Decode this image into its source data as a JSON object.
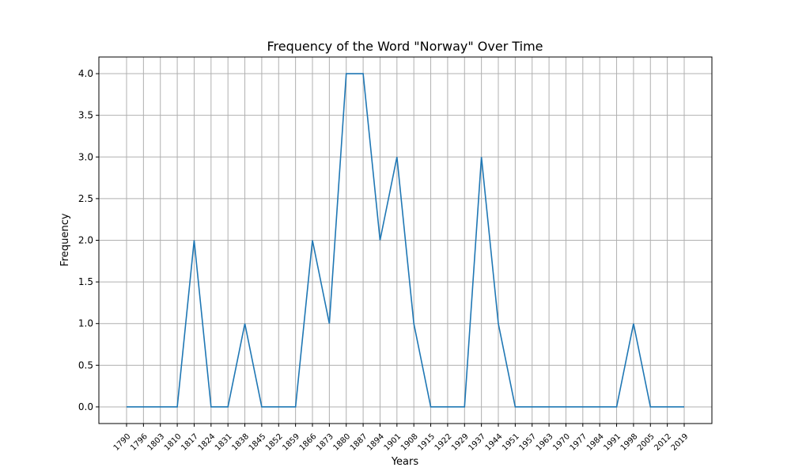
{
  "chart_data": {
    "type": "line",
    "title": "Frequency of the Word \"Norway\" Over Time",
    "xlabel": "Years",
    "ylabel": "Frequency",
    "ylim": [
      -0.2,
      4.2
    ],
    "yticks": [
      "0.0",
      "0.5",
      "1.0",
      "1.5",
      "2.0",
      "2.5",
      "3.0",
      "3.5",
      "4.0"
    ],
    "grid": true,
    "categories": [
      "1790",
      "1796",
      "1803",
      "1810",
      "1817",
      "1824",
      "1831",
      "1838",
      "1845",
      "1852",
      "1859",
      "1866",
      "1873",
      "1880",
      "1887",
      "1894",
      "1901",
      "1908",
      "1915",
      "1922",
      "1929",
      "1937",
      "1944",
      "1951",
      "1957",
      "1963",
      "1970",
      "1977",
      "1984",
      "1991",
      "1998",
      "2005",
      "2012",
      "2019"
    ],
    "series": [
      {
        "color": "#1f77b4",
        "values": [
          0,
          0,
          0,
          0,
          2,
          0,
          0,
          1,
          0,
          0,
          0,
          2,
          1,
          4,
          4,
          2,
          3,
          1,
          0,
          0,
          0,
          3,
          1,
          0,
          0,
          0,
          0,
          0,
          0,
          0,
          1,
          0,
          0,
          0
        ]
      }
    ]
  }
}
